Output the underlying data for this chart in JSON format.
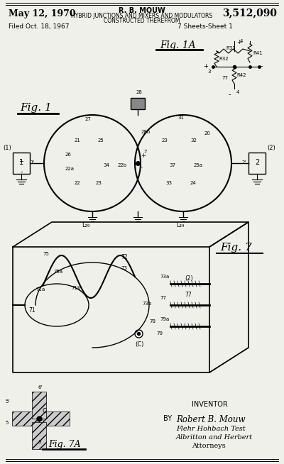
{
  "bg_color": "#f0f0eb",
  "title_left": "May 12, 1970",
  "title_center_name": "R. B. MOUW",
  "title_center_line2": "HYBRID JUNCTIONS AND MIXERS AND MODULATORS",
  "title_center_line3": "CONSTRUCTED THEREFROM",
  "title_right": "3,512,090",
  "filed_line": "Filed Oct. 18, 1967",
  "sheets_line": "7 Sheets-Sheet 1",
  "fig1_label": "Fig. 1",
  "fig1A_label": "Fig. 1A",
  "fig7_label": "Fig. 7",
  "fig7A_label": "Fig. 7A",
  "inventor_label": "INVENTOR",
  "by_label": "BY",
  "inventor_name": "Robert B. Mouw",
  "attorney_line1": "Flehr Hohbach Test",
  "attorney_line2": "Albritton and Herbert",
  "attorney_line3": "Attorneys"
}
